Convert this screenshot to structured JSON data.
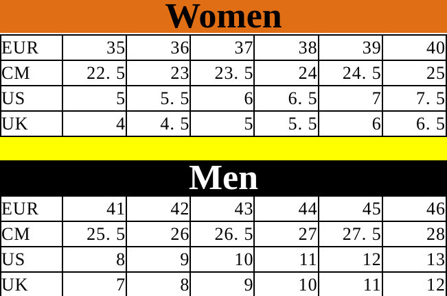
{
  "colors": {
    "women_banner_bg": "#E06E14",
    "women_banner_text": "#000000",
    "men_banner_bg": "#000000",
    "men_banner_text": "#FFFFFF",
    "divider_stripe": "#FFFF00",
    "table_border": "#000000",
    "table_bg": "#FFFFFF"
  },
  "chart_data": [
    {
      "type": "table",
      "title": "Women",
      "rows": [
        {
          "label": "EUR",
          "values": [
            "35",
            "36",
            "37",
            "38",
            "39",
            "40"
          ]
        },
        {
          "label": "CM",
          "values": [
            "22. 5",
            "23",
            "23. 5",
            "24",
            "24. 5",
            "25"
          ]
        },
        {
          "label": "US",
          "values": [
            "5",
            "5. 5",
            "6",
            "6. 5",
            "7",
            "7. 5"
          ]
        },
        {
          "label": "UK",
          "values": [
            "4",
            "4. 5",
            "5",
            "5. 5",
            "6",
            "6. 5"
          ]
        }
      ]
    },
    {
      "type": "table",
      "title": "Men",
      "rows": [
        {
          "label": "EUR",
          "values": [
            "41",
            "42",
            "43",
            "44",
            "45",
            "46"
          ]
        },
        {
          "label": "CM",
          "values": [
            "25. 5",
            "26",
            "26. 5",
            "27",
            "27. 5",
            "28"
          ]
        },
        {
          "label": "US",
          "values": [
            "8",
            "9",
            "10",
            "11",
            "12",
            "13"
          ]
        },
        {
          "label": "UK",
          "values": [
            "7",
            "8",
            "9",
            "10",
            "11",
            "12"
          ]
        }
      ]
    }
  ]
}
